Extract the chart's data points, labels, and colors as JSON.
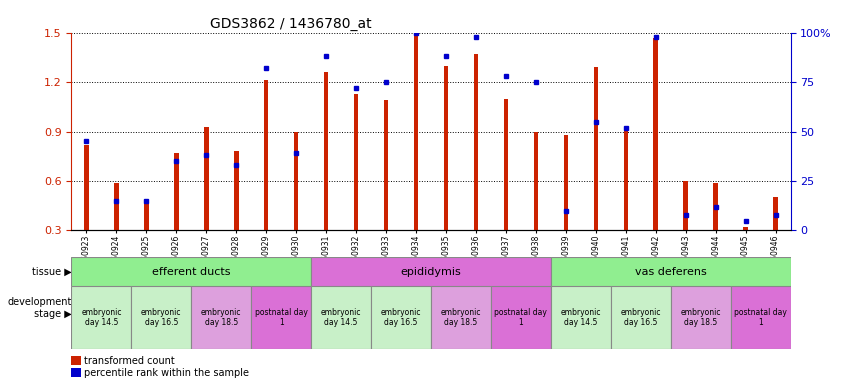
{
  "title": "GDS3862 / 1436780_at",
  "samples": [
    "GSM560923",
    "GSM560924",
    "GSM560925",
    "GSM560926",
    "GSM560927",
    "GSM560928",
    "GSM560929",
    "GSM560930",
    "GSM560931",
    "GSM560932",
    "GSM560933",
    "GSM560934",
    "GSM560935",
    "GSM560936",
    "GSM560937",
    "GSM560938",
    "GSM560939",
    "GSM560940",
    "GSM560941",
    "GSM560942",
    "GSM560943",
    "GSM560944",
    "GSM560945",
    "GSM560946"
  ],
  "red_values": [
    0.82,
    0.59,
    0.48,
    0.77,
    0.93,
    0.78,
    1.21,
    0.9,
    1.26,
    1.13,
    1.09,
    1.49,
    1.3,
    1.37,
    1.1,
    0.9,
    0.88,
    1.29,
    0.91,
    1.47,
    0.6,
    0.59,
    0.32,
    0.5
  ],
  "blue_percentile": [
    45,
    15,
    15,
    35,
    38,
    33,
    82,
    39,
    88,
    72,
    75,
    100,
    88,
    98,
    78,
    75,
    10,
    55,
    52,
    98,
    8,
    12,
    5,
    8
  ],
  "tissues": [
    {
      "label": "efferent ducts",
      "start": 0,
      "end": 8,
      "color": "#90ee90"
    },
    {
      "label": "epididymis",
      "start": 8,
      "end": 16,
      "color": "#da70d6"
    },
    {
      "label": "vas deferens",
      "start": 16,
      "end": 24,
      "color": "#90ee90"
    }
  ],
  "dev_stages": [
    {
      "label": "embryonic\nday 14.5",
      "start": 0,
      "end": 2,
      "color": "#c8f0c8"
    },
    {
      "label": "embryonic\nday 16.5",
      "start": 2,
      "end": 4,
      "color": "#c8f0c8"
    },
    {
      "label": "embryonic\nday 18.5",
      "start": 4,
      "end": 6,
      "color": "#dda0dd"
    },
    {
      "label": "postnatal day\n1",
      "start": 6,
      "end": 8,
      "color": "#da70d6"
    },
    {
      "label": "embryonic\nday 14.5",
      "start": 8,
      "end": 10,
      "color": "#c8f0c8"
    },
    {
      "label": "embryonic\nday 16.5",
      "start": 10,
      "end": 12,
      "color": "#c8f0c8"
    },
    {
      "label": "embryonic\nday 18.5",
      "start": 12,
      "end": 14,
      "color": "#dda0dd"
    },
    {
      "label": "postnatal day\n1",
      "start": 14,
      "end": 16,
      "color": "#da70d6"
    },
    {
      "label": "embryonic\nday 14.5",
      "start": 16,
      "end": 18,
      "color": "#c8f0c8"
    },
    {
      "label": "embryonic\nday 16.5",
      "start": 18,
      "end": 20,
      "color": "#c8f0c8"
    },
    {
      "label": "embryonic\nday 18.5",
      "start": 20,
      "end": 22,
      "color": "#dda0dd"
    },
    {
      "label": "postnatal day\n1",
      "start": 22,
      "end": 24,
      "color": "#da70d6"
    }
  ],
  "ylim": [
    0.3,
    1.5
  ],
  "yticks": [
    0.3,
    0.6,
    0.9,
    1.2,
    1.5
  ],
  "right_yticks": [
    0,
    25,
    50,
    75,
    100
  ],
  "bar_color": "#cc2200",
  "dot_color": "#0000cc",
  "bar_width": 0.15
}
